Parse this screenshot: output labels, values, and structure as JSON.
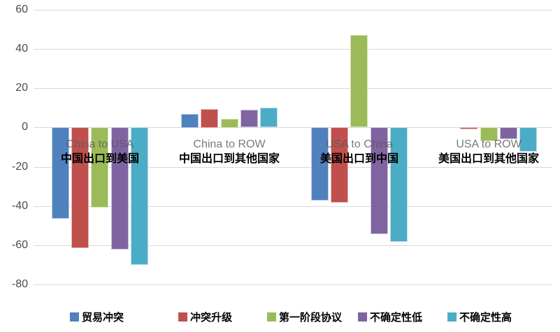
{
  "chart_data": {
    "type": "bar",
    "title": "",
    "categories": [
      "China to USA",
      "China to ROW",
      "USA to China",
      "USA to ROW"
    ],
    "categories_zh": [
      "中国出口到美国",
      "中国出口到其他国家",
      "美国出口到中国",
      "美国出口到其他国家"
    ],
    "series": [
      {
        "name": "贸易冲突",
        "color": "#4F81BD",
        "border_color": "#B9CDE5",
        "values": [
          -46.5,
          7,
          -37.5,
          0
        ]
      },
      {
        "name": "冲突升级",
        "color": "#C0504D",
        "border_color": "#E5B8B7",
        "values": [
          -61.5,
          9.5,
          -38.5,
          -1
        ]
      },
      {
        "name": "第一阶段协议",
        "color": "#9BBB59",
        "border_color": "#D7E4BD",
        "values": [
          -41,
          4.5,
          47,
          -7
        ]
      },
      {
        "name": "不确定性低",
        "color": "#8064A2",
        "border_color": "#CCC0DA",
        "values": [
          -62.5,
          9,
          -54.5,
          -6
        ]
      },
      {
        "name": "不确定性高",
        "color": "#4BACC6",
        "border_color": "#B7DEE8",
        "values": [
          -70,
          10,
          -58.5,
          -12.5
        ]
      }
    ],
    "yticks": [
      60,
      40,
      20,
      0,
      -20,
      -40,
      -60,
      -80
    ],
    "ylim": [
      -80,
      60
    ],
    "grid": true,
    "legend_position": "bottom",
    "gridline_color": "#D9D9D9",
    "tick_label_color": "#4A4A4F",
    "category_label_color": "#595959",
    "category_label_zh_color": "#000000",
    "background": "#FFFFFF"
  }
}
